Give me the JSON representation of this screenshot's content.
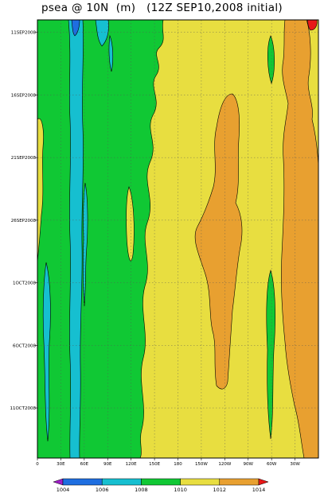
{
  "chart_data": {
    "type": "heatmap",
    "title": "psea @ 10N  (m)   (12Z SEP10,2008 initial)",
    "xlabel": "",
    "ylabel": "",
    "x_ticks": [
      "0",
      "30E",
      "60E",
      "90E",
      "120E",
      "150E",
      "180",
      "150W",
      "120W",
      "90W",
      "60W",
      "30W"
    ],
    "y_ticks": [
      "11SEP2008",
      "16SEP2008",
      "21SEP2008",
      "26SEP2008",
      "1OCT2008",
      "6OCT2008",
      "11OCT2008"
    ],
    "xlim": [
      0,
      360
    ],
    "ylim_dates": [
      "10SEP2008",
      "15OCT2008"
    ],
    "colorbar": {
      "labels": [
        "1004",
        "1006",
        "1008",
        "1010",
        "1012",
        "1014"
      ],
      "colors": [
        "#a01ec8",
        "#1e6ee0",
        "#16bfd0",
        "#10c834",
        "#e8de40",
        "#e8a030",
        "#e81818"
      ]
    },
    "field_ranges": [
      {
        "lon_range": [
          0,
          20
        ],
        "value_range": [
          1009,
          1011
        ]
      },
      {
        "lon_range": [
          20,
          150
        ],
        "value_range": [
          1004,
          1010
        ]
      },
      {
        "lon_range": [
          150,
          290
        ],
        "value_range": [
          1011,
          1013
        ]
      },
      {
        "lon_range": [
          290,
          360
        ],
        "value_range": [
          1010,
          1015
        ]
      }
    ]
  }
}
